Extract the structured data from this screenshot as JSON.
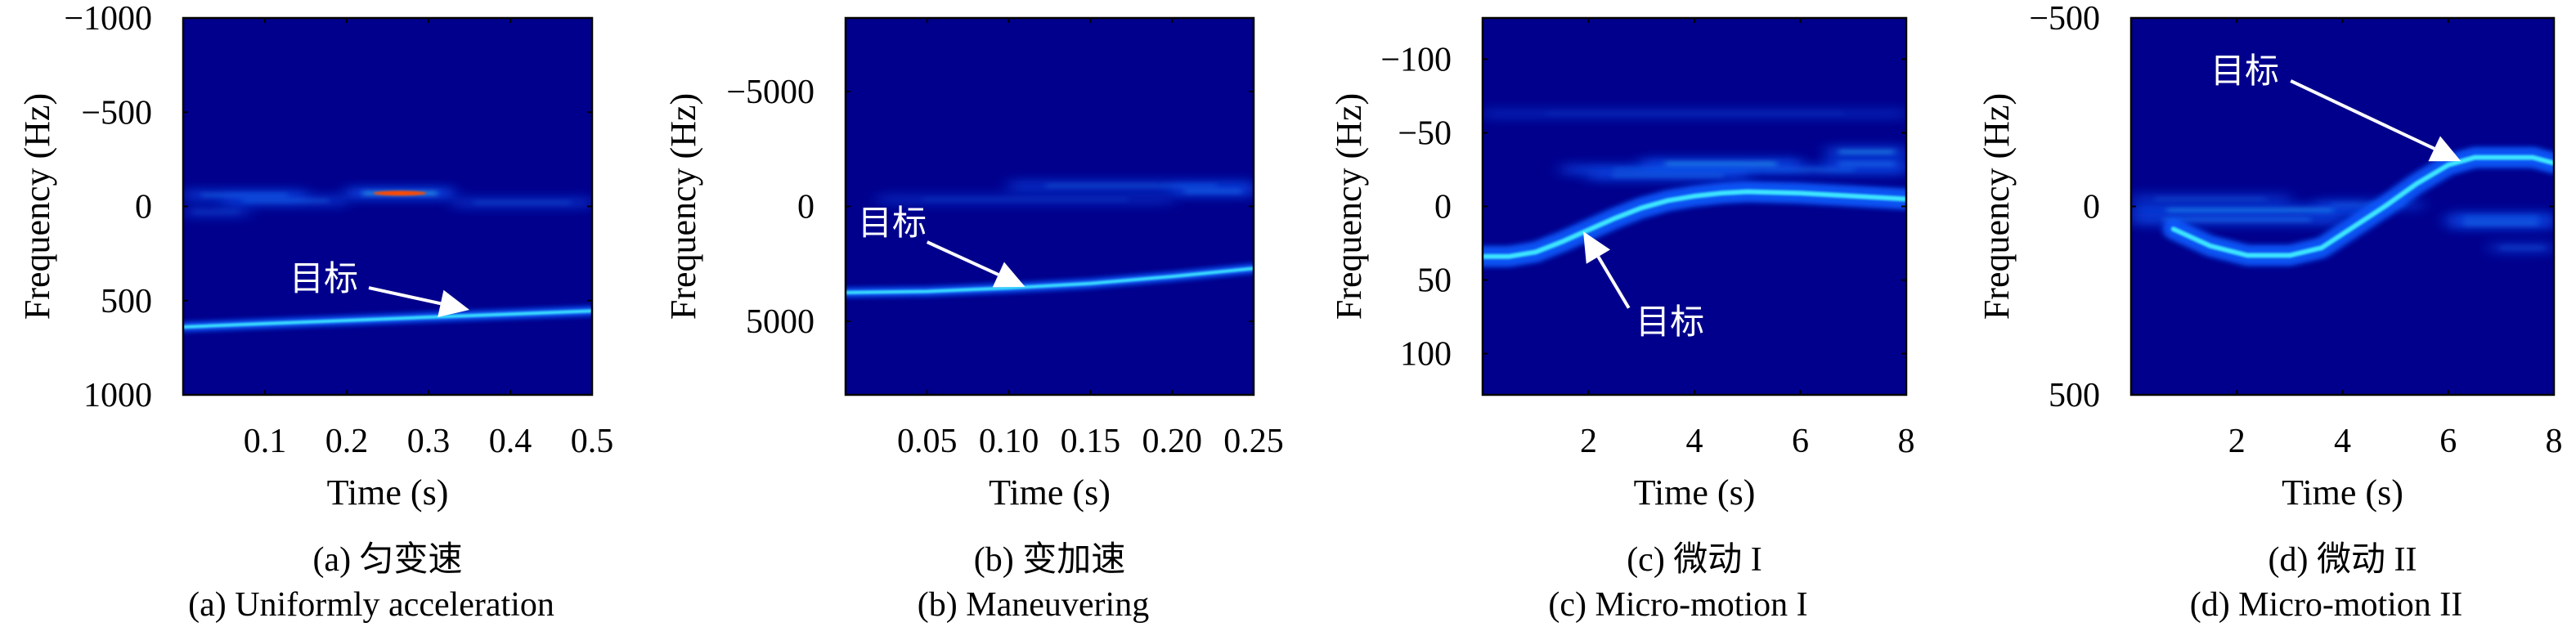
{
  "chart_data": [
    {
      "type": "heatmap",
      "caption_cn": "(a) 匀变速",
      "caption_en": "(a) Uniformly acceleration",
      "xlabel": "Time (s)",
      "ylabel": "Frequency (Hz)",
      "xlim": [
        0,
        0.5
      ],
      "ylim": [
        -1000,
        1000
      ],
      "y_reversed": true,
      "xticks": [
        0.1,
        0.2,
        0.3,
        0.4,
        0.5
      ],
      "xtick_labels": [
        "0.1",
        "0.2",
        "0.3",
        "0.4",
        "0.5"
      ],
      "yticks": [
        -1000,
        -500,
        0,
        500,
        1000
      ],
      "ytick_labels": [
        "−1000",
        "−500",
        "0",
        "500",
        "1000"
      ],
      "target_track": {
        "x": [
          0,
          0.1,
          0.2,
          0.3,
          0.4,
          0.5
        ],
        "y": [
          640,
          622,
          605,
          588,
          572,
          555
        ]
      },
      "clutter": [
        {
          "x": [
            0,
            0.15
          ],
          "y": -60,
          "strength": 0.6
        },
        {
          "x": [
            0.05,
            0.2
          ],
          "y": -30,
          "strength": 0.5
        },
        {
          "x": [
            0.2,
            0.33
          ],
          "y": -70,
          "strength": 1.0
        },
        {
          "x": [
            0.33,
            0.5
          ],
          "y": -20,
          "strength": 0.4
        },
        {
          "x": [
            0,
            0.08
          ],
          "y": 30,
          "strength": 0.3
        }
      ],
      "annotation": {
        "text": "目标",
        "text_at": [
          0.13,
          380
        ],
        "arrow_from": [
          0.227,
          432
        ],
        "arrow_to": [
          0.35,
          549
        ]
      }
    },
    {
      "type": "heatmap",
      "caption_cn": "(b) 变加速",
      "caption_en": "(b) Maneuvering",
      "xlabel": "Time (s)",
      "ylabel": "Frequency (Hz)",
      "xlim": [
        0,
        0.25
      ],
      "ylim": [
        -8200,
        8200
      ],
      "y_reversed": true,
      "xticks": [
        0.05,
        0.1,
        0.15,
        0.2,
        0.25
      ],
      "xtick_labels": [
        "0.05",
        "0.10",
        "0.15",
        "0.20",
        "0.25"
      ],
      "yticks": [
        -5000,
        0,
        5000
      ],
      "ytick_labels": [
        "−5000",
        "0",
        "5000"
      ],
      "target_track": {
        "x": [
          0,
          0.05,
          0.1,
          0.15,
          0.2,
          0.25
        ],
        "y": [
          3750,
          3700,
          3550,
          3350,
          3050,
          2700
        ]
      },
      "clutter": [
        {
          "x": [
            0.1,
            0.25
          ],
          "y": -900,
          "strength": 0.5
        },
        {
          "x": [
            0.2,
            0.25
          ],
          "y": -650,
          "strength": 0.6
        },
        {
          "x": [
            0.02,
            0.2
          ],
          "y": -300,
          "strength": 0.25
        }
      ],
      "annotation": {
        "text": "目标",
        "text_at": [
          0.0075,
          700
        ],
        "arrow_from": [
          0.05,
          1550
        ],
        "arrow_to": [
          0.11,
          3500
        ]
      }
    },
    {
      "type": "heatmap",
      "caption_cn": "(c) 微动 I",
      "caption_en": "(c) Micro-motion I",
      "xlabel": "Time (s)",
      "ylabel": "Frequency (Hz)",
      "xlim": [
        0,
        8
      ],
      "ylim": [
        -128,
        128
      ],
      "y_reversed": true,
      "xticks": [
        2,
        4,
        6,
        8
      ],
      "xtick_labels": [
        "2",
        "4",
        "6",
        "8"
      ],
      "yticks": [
        -100,
        -50,
        0,
        50,
        100
      ],
      "ytick_labels": [
        "−100",
        "−50",
        "0",
        "50",
        "100"
      ],
      "target_track": {
        "x": [
          0,
          0.5,
          1,
          1.5,
          2,
          2.5,
          3,
          3.5,
          4,
          4.5,
          5,
          6,
          7,
          8
        ],
        "y": [
          34,
          34,
          31,
          24,
          16,
          8,
          1,
          -4,
          -7,
          -9,
          -10,
          -9,
          -7,
          -5
        ]
      },
      "clutter": [
        {
          "x": [
            1.5,
            8
          ],
          "y": -25,
          "strength": 0.6
        },
        {
          "x": [
            3,
            6
          ],
          "y": -29,
          "strength": 0.8
        },
        {
          "x": [
            6.5,
            8
          ],
          "y": -37,
          "strength": 0.8
        },
        {
          "x": [
            6.5,
            8
          ],
          "y": -29,
          "strength": 0.7
        },
        {
          "x": [
            2,
            5
          ],
          "y": -21,
          "strength": 0.6
        },
        {
          "x": [
            0,
            8
          ],
          "y": -63,
          "strength": 0.2
        }
      ],
      "annotation": {
        "text": "目标",
        "text_at": [
          2.89,
          78
        ],
        "arrow_from": [
          2.76,
          69
        ],
        "arrow_to": [
          1.9,
          17
        ]
      }
    },
    {
      "type": "heatmap",
      "caption_cn": "(d) 微动 II",
      "caption_en": "(d) Micro-motion II",
      "xlabel": "Time (s)",
      "ylabel": "Frequency (Hz)",
      "xlim": [
        0,
        8
      ],
      "ylim": [
        -500,
        500
      ],
      "y_reversed": true,
      "xticks": [
        2,
        4,
        6,
        8
      ],
      "xtick_labels": [
        "2",
        "4",
        "6",
        "8"
      ],
      "yticks": [
        -500,
        0,
        500
      ],
      "ytick_labels": [
        "−500",
        "0",
        "500"
      ],
      "target_track": {
        "x": [
          0.8,
          1.5,
          2.2,
          3,
          3.6,
          4.2,
          4.8,
          5.4,
          6,
          6.5,
          7,
          7.6,
          8
        ],
        "y": [
          60,
          105,
          130,
          130,
          110,
          55,
          0,
          -60,
          -110,
          -130,
          -130,
          -130,
          -115
        ]
      },
      "clutter": [
        {
          "x": [
            0,
            4.5
          ],
          "y": 10,
          "strength": 0.8
        },
        {
          "x": [
            0,
            4
          ],
          "y": 35,
          "strength": 0.7
        },
        {
          "x": [
            0,
            3
          ],
          "y": -20,
          "strength": 0.4
        },
        {
          "x": [
            6,
            8
          ],
          "y": 30,
          "strength": 0.6
        },
        {
          "x": [
            6,
            8
          ],
          "y": 45,
          "strength": 0.7
        },
        {
          "x": [
            6.8,
            8
          ],
          "y": 110,
          "strength": 0.4
        },
        {
          "x": [
            3.5,
            5.5
          ],
          "y": -5,
          "strength": 0.4
        }
      ],
      "annotation": {
        "text": "目标",
        "text_at": [
          1.5,
          -361
        ],
        "arrow_from": [
          3.02,
          -333
        ],
        "arrow_to": [
          6.24,
          -120
        ]
      }
    }
  ],
  "colors": {
    "background": "#00008c",
    "glow": "#0a5cff",
    "core": "#3ee6ff",
    "hot": "#ff4a00",
    "annotation": "#ffffff"
  }
}
